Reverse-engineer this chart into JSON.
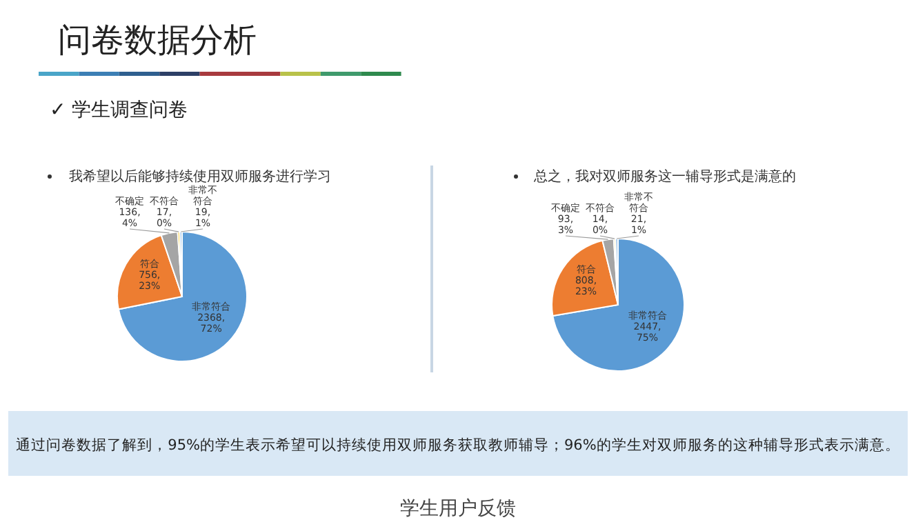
{
  "chart_data": [
    {
      "type": "pie",
      "title": "我希望以后能够持续使用双师服务进行学习",
      "categories": [
        "非常符合",
        "符合",
        "不确定",
        "不符合",
        "非常不符合"
      ],
      "values": [
        2368,
        756,
        136,
        17,
        19
      ],
      "value_labels": [
        "2368, 72%",
        "756, 23%",
        "136, 4%",
        "17, 0%",
        "19, 1%"
      ],
      "colors": [
        "#5b9bd5",
        "#ed7d31",
        "#a5a5a5",
        "#ffc000",
        "#9dc3e6"
      ]
    },
    {
      "type": "pie",
      "title": "总之，我对双师服务这一辅导形式是满意的",
      "categories": [
        "非常符合",
        "符合",
        "不确定",
        "不符合",
        "非常不符合"
      ],
      "values": [
        2447,
        808,
        93,
        14,
        21
      ],
      "value_labels": [
        "2447, 75%",
        "808, 23%",
        "93, 3%",
        "14, 0%",
        "21, 1%"
      ],
      "colors": [
        "#5b9bd5",
        "#ed7d31",
        "#a5a5a5",
        "#ffc000",
        "#9dc3e6"
      ]
    },
    {
      "type": "other",
      "title": "问卷数据分析",
      "subtitle": "✓ 学生调查问卷",
      "annotations": [
        "通过问卷数据了解到，95%的学生表示希望可以持续使用双师服务获取教师辅导；96%的学生对双师服务的这种辅导形式表示满意。",
        "学生用户反馈"
      ]
    }
  ]
}
